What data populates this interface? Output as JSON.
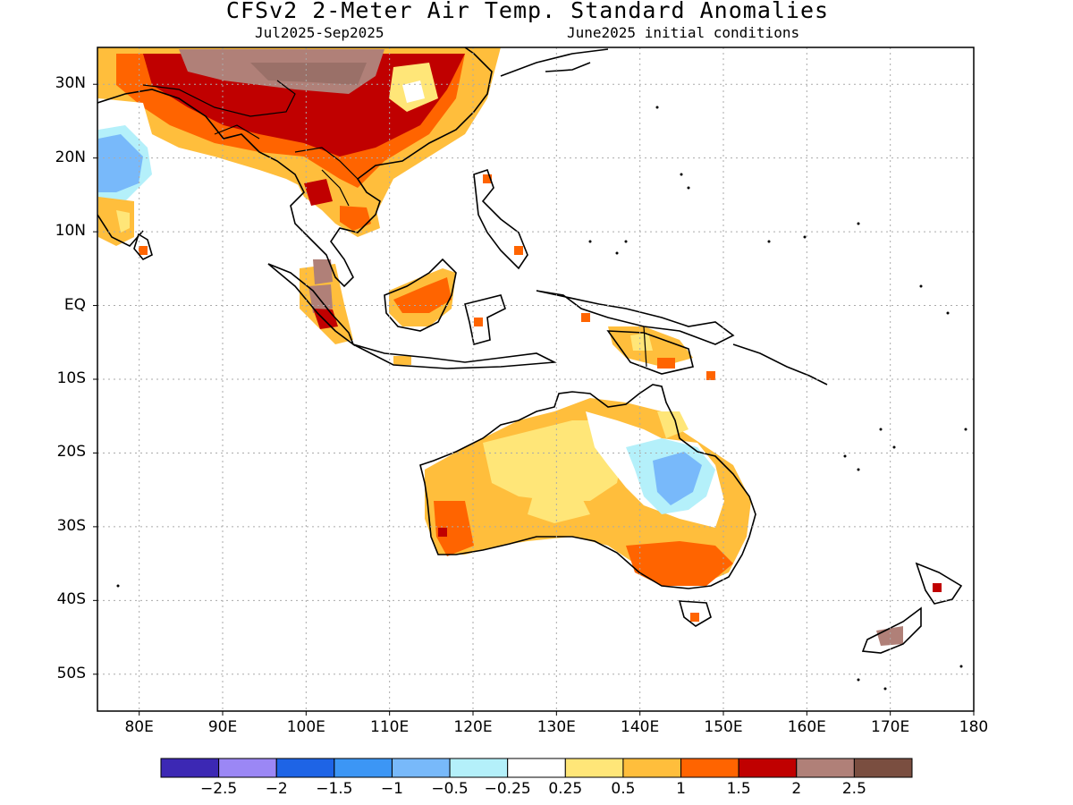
{
  "title": "CFSv2 2-Meter Air Temp. Standard Anomalies",
  "subtitle_left": "Jul2025-Sep2025",
  "subtitle_right": "June2025 initial conditions",
  "map": {
    "lon_range": [
      75,
      180
    ],
    "lat_range": [
      -55,
      35
    ],
    "lat_ticks": [
      {
        "value": 30,
        "label": "30N"
      },
      {
        "value": 20,
        "label": "20N"
      },
      {
        "value": 10,
        "label": "10N"
      },
      {
        "value": 0,
        "label": "EQ"
      },
      {
        "value": -10,
        "label": "10S"
      },
      {
        "value": -20,
        "label": "20S"
      },
      {
        "value": -30,
        "label": "30S"
      },
      {
        "value": -40,
        "label": "40S"
      },
      {
        "value": -50,
        "label": "50S"
      }
    ],
    "lon_ticks": [
      {
        "value": 80,
        "label": "80E"
      },
      {
        "value": 90,
        "label": "90E"
      },
      {
        "value": 100,
        "label": "100E"
      },
      {
        "value": 110,
        "label": "110E"
      },
      {
        "value": 120,
        "label": "120E"
      },
      {
        "value": 130,
        "label": "130E"
      },
      {
        "value": 140,
        "label": "140E"
      },
      {
        "value": 150,
        "label": "150E"
      },
      {
        "value": 160,
        "label": "160E"
      },
      {
        "value": 170,
        "label": "170E"
      },
      {
        "value": 180,
        "label": "180"
      }
    ],
    "grid": "dotted"
  },
  "colorbar": {
    "colors": [
      "#3c28b4",
      "#9b87f5",
      "#1e64e6",
      "#3c96f5",
      "#78b9fa",
      "#b4f0fa",
      "#ffffff",
      "#ffe678",
      "#ffbe3c",
      "#ff6400",
      "#c00000",
      "#b08078",
      "#7a4e40"
    ],
    "ticks": [
      "-2.5",
      "-2",
      "-1.5",
      "-1",
      "-0.5",
      "-0.25",
      "0.25",
      "0.5",
      "1",
      "1.5",
      "2",
      "2.5"
    ]
  }
}
